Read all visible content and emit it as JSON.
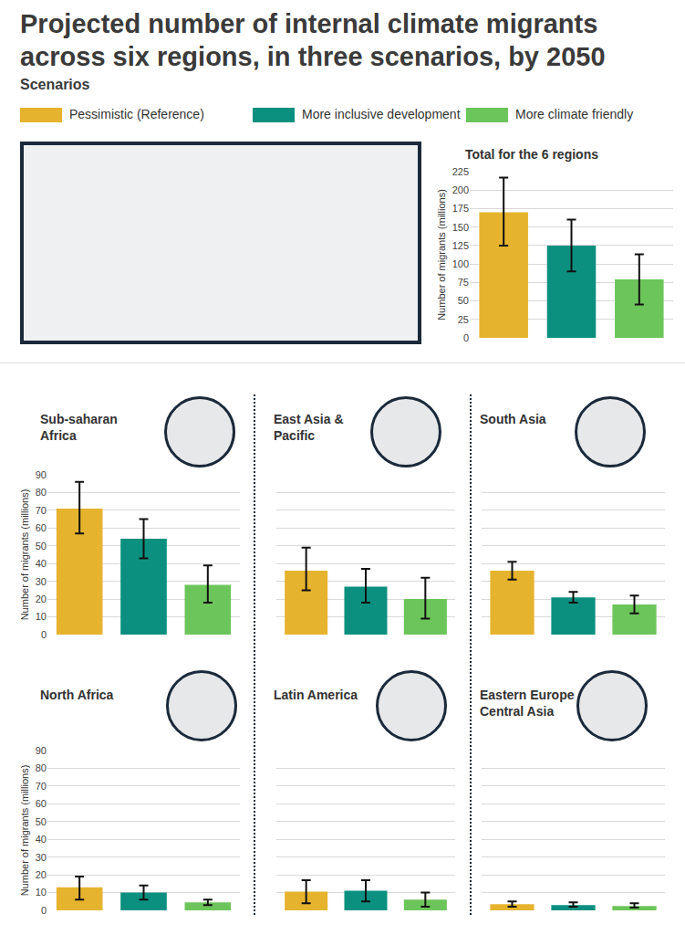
{
  "title": "Projected number of internal climate migrants across six regions, in three scenarios, by 2050",
  "legend_heading": "Scenarios",
  "scenarios": [
    {
      "name": "Pessimistic (Reference)",
      "color": "#e5b32e"
    },
    {
      "name": "More inclusive development",
      "color": "#0b9080"
    },
    {
      "name": "More climate friendly",
      "color": "#6cc55a"
    }
  ],
  "chart_data": [
    {
      "type": "bar",
      "title": "Total for the 6 regions",
      "y_label": "Number of migrants (millions)",
      "categories": [
        null,
        null,
        null
      ],
      "values": [
        170,
        125,
        79
      ],
      "error_plus": [
        47,
        35,
        34
      ],
      "error_minus": [
        45,
        35,
        34
      ],
      "colors": [
        "#e5b32e",
        "#0b9080",
        "#6cc55a"
      ],
      "ylim": [
        0,
        225
      ],
      "yticks": [
        0,
        25,
        50,
        75,
        100,
        125,
        150,
        175,
        200,
        225
      ],
      "grid": true,
      "tick_labels": "y"
    },
    {
      "type": "bar",
      "title": "Sub-saharan Africa",
      "y_label": "Number of migrants (millions)",
      "categories": [
        null,
        null,
        null
      ],
      "values": [
        71,
        54,
        28
      ],
      "error_plus": [
        15,
        11,
        11
      ],
      "error_minus": [
        14,
        11,
        10
      ],
      "colors": [
        "#e5b32e",
        "#0b9080",
        "#6cc55a"
      ],
      "ylim": [
        0,
        90
      ],
      "yticks": [
        0,
        10,
        20,
        30,
        40,
        50,
        60,
        70,
        80,
        90
      ],
      "grid": true,
      "tick_labels": "y"
    },
    {
      "type": "bar",
      "title": "East Asia & Pacific",
      "categories": [
        null,
        null,
        null
      ],
      "values": [
        36,
        27,
        20
      ],
      "error_plus": [
        13,
        10,
        12
      ],
      "error_minus": [
        11,
        9,
        11
      ],
      "colors": [
        "#e5b32e",
        "#0b9080",
        "#6cc55a"
      ],
      "ylim": [
        0,
        90
      ],
      "yticks": [
        0,
        10,
        20,
        30,
        40,
        50,
        60,
        70,
        80,
        90
      ],
      "grid": true,
      "tick_labels": false
    },
    {
      "type": "bar",
      "title": "South Asia",
      "categories": [
        null,
        null,
        null
      ],
      "values": [
        36,
        21,
        17
      ],
      "error_plus": [
        5,
        3,
        5
      ],
      "error_minus": [
        5,
        3,
        5
      ],
      "colors": [
        "#e5b32e",
        "#0b9080",
        "#6cc55a"
      ],
      "ylim": [
        0,
        90
      ],
      "yticks": [
        0,
        10,
        20,
        30,
        40,
        50,
        60,
        70,
        80,
        90
      ],
      "grid": true,
      "tick_labels": false
    },
    {
      "type": "bar",
      "title": "North Africa",
      "y_label": "Number of migrants (millions)",
      "categories": [
        null,
        null,
        null
      ],
      "values": [
        13,
        10,
        4.5
      ],
      "error_plus": [
        6,
        4,
        1.5
      ],
      "error_minus": [
        7,
        4,
        1.5
      ],
      "colors": [
        "#e5b32e",
        "#0b9080",
        "#6cc55a"
      ],
      "ylim": [
        0,
        90
      ],
      "yticks": [
        0,
        10,
        20,
        30,
        40,
        50,
        60,
        70,
        80,
        90
      ],
      "grid": true,
      "tick_labels": "y"
    },
    {
      "type": "bar",
      "title": "Latin America",
      "categories": [
        null,
        null,
        null
      ],
      "values": [
        10.5,
        11,
        6
      ],
      "error_plus": [
        6.5,
        6,
        4
      ],
      "error_minus": [
        6.5,
        6,
        4
      ],
      "colors": [
        "#e5b32e",
        "#0b9080",
        "#6cc55a"
      ],
      "ylim": [
        0,
        90
      ],
      "yticks": [
        0,
        10,
        20,
        30,
        40,
        50,
        60,
        70,
        80,
        90
      ],
      "grid": true,
      "tick_labels": false
    },
    {
      "type": "bar",
      "title": "Eastern Europe & Central Asia",
      "categories": [
        null,
        null,
        null
      ],
      "values": [
        3.5,
        3,
        2.5
      ],
      "error_plus": [
        1.5,
        1.5,
        1.5
      ],
      "error_minus": [
        1.5,
        1,
        1
      ],
      "colors": [
        "#e5b32e",
        "#0b9080",
        "#6cc55a"
      ],
      "ylim": [
        0,
        90
      ],
      "yticks": [
        0,
        10,
        20,
        30,
        40,
        50,
        60,
        70,
        80,
        90
      ],
      "grid": true,
      "tick_labels": false
    }
  ]
}
